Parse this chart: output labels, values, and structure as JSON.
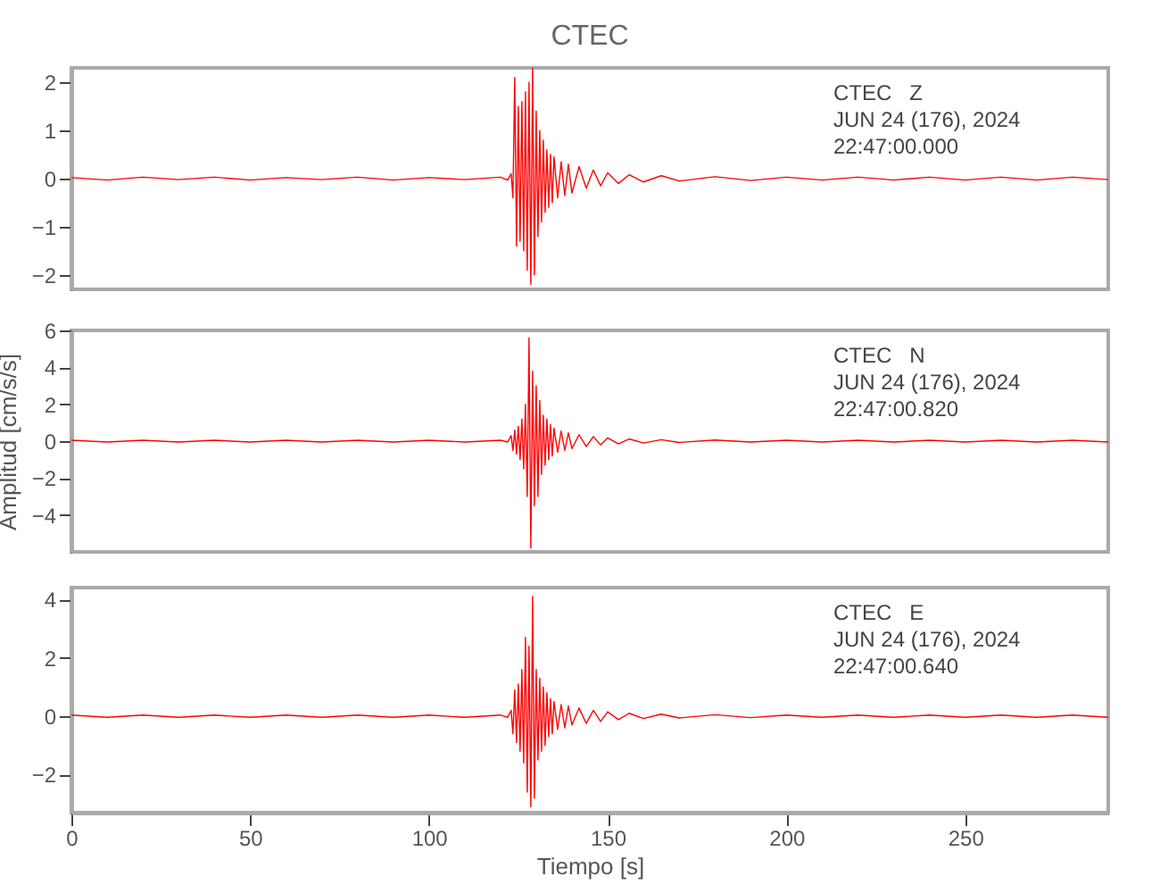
{
  "chart_data": [
    {
      "type": "line",
      "title": "CTEC",
      "color": "#ff0000",
      "xlim": [
        0,
        290
      ],
      "xticks": [
        0,
        50,
        100,
        150,
        200,
        250
      ],
      "ylim": [
        -2.3,
        2.3
      ],
      "yticks": [
        -2,
        -1,
        0,
        1,
        2
      ],
      "tick_labels": "y",
      "grid": false,
      "annotations": [
        "CTEC   Z",
        "JUN 24 (176), 2024",
        "22:47:00.000"
      ],
      "x": [
        0,
        10,
        20,
        30,
        40,
        50,
        60,
        70,
        80,
        90,
        100,
        110,
        120,
        122,
        123,
        123.5,
        124,
        124.5,
        125,
        125.5,
        126,
        126.5,
        127,
        127.5,
        128,
        128.5,
        129,
        129.5,
        130,
        130.5,
        131,
        131.5,
        132,
        132.5,
        133,
        133.5,
        134,
        134.5,
        135,
        136,
        137,
        138,
        139,
        140,
        142,
        144,
        146,
        148,
        150,
        153,
        156,
        160,
        165,
        170,
        180,
        190,
        200,
        210,
        220,
        230,
        240,
        250,
        260,
        270,
        280,
        290
      ],
      "values": [
        0.02,
        -0.03,
        0.03,
        -0.02,
        0.03,
        -0.03,
        0.02,
        -0.02,
        0.03,
        -0.03,
        0.02,
        -0.02,
        0.03,
        -0.03,
        0.1,
        -0.4,
        2.1,
        -1.4,
        1.5,
        -1.3,
        1.6,
        -1.5,
        1.8,
        -1.9,
        2.0,
        -2.2,
        2.3,
        -2.0,
        1.4,
        -1.2,
        1.0,
        -0.9,
        0.8,
        -0.7,
        0.6,
        -0.6,
        0.5,
        -0.5,
        0.45,
        -0.4,
        0.35,
        -0.35,
        0.3,
        -0.3,
        0.25,
        -0.2,
        0.18,
        -0.15,
        0.12,
        -0.1,
        0.08,
        -0.07,
        0.06,
        -0.05,
        0.04,
        -0.04,
        0.03,
        -0.03,
        0.03,
        -0.03,
        0.03,
        -0.03,
        0.03,
        -0.03,
        0.03,
        -0.02
      ]
    },
    {
      "type": "line",
      "ylabel": "Amplitud [cm/s/s]",
      "color": "#ff0000",
      "xlim": [
        0,
        290
      ],
      "xticks": [
        0,
        50,
        100,
        150,
        200,
        250
      ],
      "ylim": [
        -6,
        6
      ],
      "yticks": [
        -4,
        -2,
        0,
        2,
        4,
        6
      ],
      "tick_labels": "y",
      "grid": false,
      "annotations": [
        "CTEC   N",
        "JUN 24 (176), 2024",
        "22:47:00.820"
      ],
      "x": [
        0,
        10,
        20,
        30,
        40,
        50,
        60,
        70,
        80,
        90,
        100,
        110,
        120,
        122,
        123,
        123.5,
        124,
        124.5,
        125,
        125.5,
        126,
        126.5,
        127,
        127.5,
        128,
        128.5,
        129,
        129.5,
        130,
        130.5,
        131,
        131.5,
        132,
        132.5,
        133,
        133.5,
        134,
        134.5,
        135,
        136,
        137,
        138,
        139,
        140,
        142,
        144,
        146,
        148,
        150,
        153,
        156,
        160,
        165,
        170,
        180,
        190,
        200,
        210,
        220,
        230,
        240,
        250,
        260,
        270,
        280,
        290
      ],
      "values": [
        0.05,
        -0.05,
        0.05,
        -0.05,
        0.05,
        -0.05,
        0.05,
        -0.05,
        0.05,
        -0.05,
        0.05,
        -0.05,
        0.05,
        -0.05,
        0.3,
        -0.5,
        0.6,
        -0.7,
        0.8,
        -1.0,
        1.2,
        -1.5,
        2.0,
        -3.0,
        5.6,
        -5.8,
        3.8,
        -3.5,
        3.0,
        -3.0,
        2.2,
        -1.8,
        1.4,
        -1.3,
        1.2,
        -1.0,
        0.9,
        -0.8,
        0.7,
        -0.6,
        0.55,
        -0.5,
        0.45,
        -0.4,
        0.35,
        -0.3,
        0.25,
        -0.2,
        0.18,
        -0.15,
        0.12,
        -0.1,
        0.08,
        -0.07,
        0.06,
        -0.05,
        0.05,
        -0.05,
        0.05,
        -0.05,
        0.05,
        -0.05,
        0.05,
        -0.05,
        0.05,
        -0.05
      ]
    },
    {
      "type": "line",
      "xlabel": "Tiempo [s]",
      "color": "#ff0000",
      "xlim": [
        0,
        290
      ],
      "xticks": [
        0,
        50,
        100,
        150,
        200,
        250
      ],
      "ylim": [
        -3.3,
        4.4
      ],
      "yticks": [
        -2,
        0,
        2,
        4
      ],
      "grid": false,
      "annotations": [
        "CTEC   E",
        "JUN 24 (176), 2024",
        "22:47:00.640"
      ],
      "x": [
        0,
        10,
        20,
        30,
        40,
        50,
        60,
        70,
        80,
        90,
        100,
        110,
        120,
        122,
        123,
        123.5,
        124,
        124.5,
        125,
        125.5,
        126,
        126.5,
        127,
        127.5,
        128,
        128.5,
        129,
        129.5,
        130,
        130.5,
        131,
        131.5,
        132,
        132.5,
        133,
        133.5,
        134,
        134.5,
        135,
        136,
        137,
        138,
        139,
        140,
        142,
        144,
        146,
        148,
        150,
        153,
        156,
        160,
        165,
        170,
        180,
        190,
        200,
        210,
        220,
        230,
        240,
        250,
        260,
        270,
        280,
        290
      ],
      "values": [
        0.04,
        -0.04,
        0.04,
        -0.04,
        0.04,
        -0.04,
        0.04,
        -0.04,
        0.04,
        -0.04,
        0.04,
        -0.04,
        0.04,
        -0.04,
        0.2,
        -0.6,
        0.9,
        -0.9,
        1.1,
        -1.2,
        1.6,
        -1.6,
        2.7,
        -2.6,
        2.4,
        -3.1,
        4.1,
        -2.8,
        1.6,
        -1.5,
        1.3,
        -1.2,
        1.0,
        -1.0,
        0.8,
        -0.7,
        0.6,
        -0.6,
        0.5,
        -0.45,
        0.4,
        -0.4,
        0.35,
        -0.3,
        0.28,
        -0.25,
        0.2,
        -0.18,
        0.15,
        -0.12,
        0.1,
        -0.08,
        0.07,
        -0.06,
        0.05,
        -0.05,
        0.04,
        -0.04,
        0.04,
        -0.04,
        0.04,
        -0.04,
        0.04,
        -0.04,
        0.04,
        -0.04
      ]
    }
  ]
}
